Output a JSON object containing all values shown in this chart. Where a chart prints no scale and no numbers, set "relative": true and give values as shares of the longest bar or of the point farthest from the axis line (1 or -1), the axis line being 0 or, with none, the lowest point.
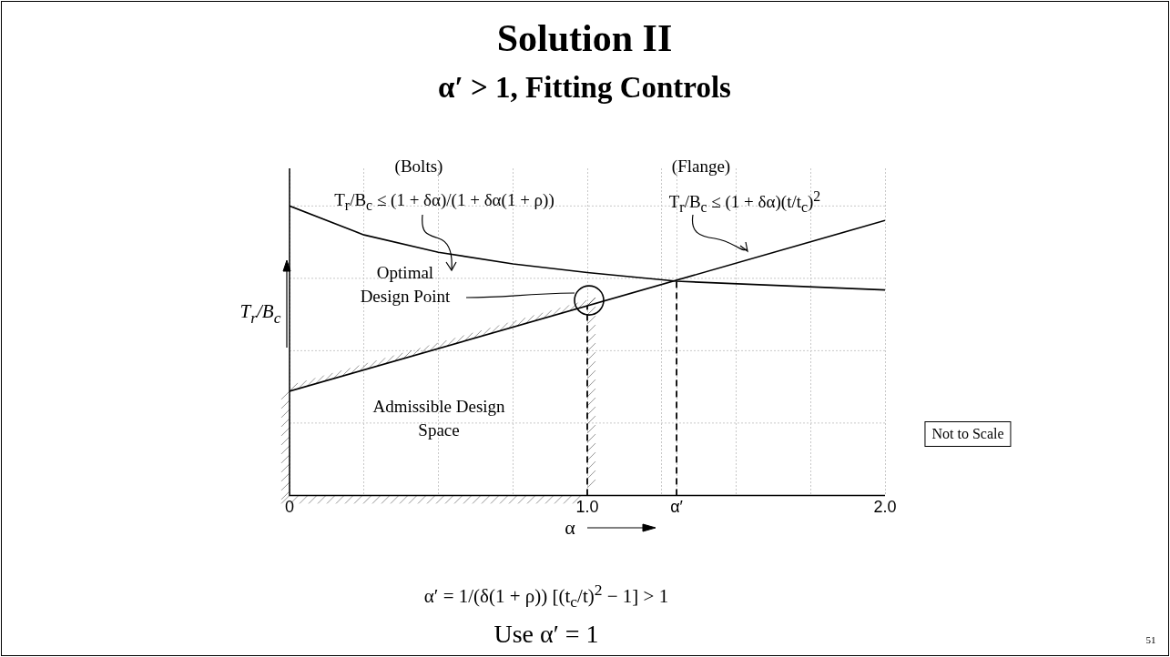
{
  "chart_data": {
    "type": "line",
    "title": "Solution II",
    "subtitle": "α′ > 1, Fitting Controls",
    "xlabel": "α",
    "ylabel": "T$_{r}$/B$_{c}$",
    "relative": true,
    "xlim": [
      0,
      2
    ],
    "xticks": [
      {
        "value": 0,
        "label": "0"
      },
      {
        "value": 0.25,
        "label": null
      },
      {
        "value": 0.5,
        "label": null
      },
      {
        "value": 0.75,
        "label": null
      },
      {
        "value": 1,
        "label": "1.0"
      },
      {
        "value": 1.25,
        "label": null
      },
      {
        "value": 1.3,
        "label": "α′"
      },
      {
        "value": 1.5,
        "label": null
      },
      {
        "value": 1.75,
        "label": null
      },
      {
        "value": 2,
        "label": "2.0"
      }
    ],
    "grid": true,
    "marker": "none",
    "line_style": "solid",
    "series": [
      {
        "color": "#000000",
        "x": [
          0,
          0.25,
          0.5,
          0.75,
          1,
          1.3,
          2
        ],
        "values": [
          1,
          0.9,
          0.84,
          0.8,
          0.77,
          0.74,
          0.71
        ]
      },
      {
        "color": "#000000",
        "x": [
          0,
          2
        ],
        "values": [
          0.36,
          0.95
        ]
      }
    ],
    "ref_lines": [
      {
        "axis": "x",
        "value": 1,
        "line_style": "dashed",
        "color": "#000000"
      },
      {
        "axis": "x",
        "value": 1.3,
        "line_style": "dashed",
        "color": "#000000"
      }
    ],
    "annotations": [
      "(Bolts)",
      "T$_{r}$/B$_{c}$ ≤ (1 + δα)/(1 + δα(1 + ρ))",
      "(Flange)",
      "T$_{r}$/B$_{c}$ ≤ (1 + δα)(t/t$_{c}$)$^{2}$",
      "Optimal Design Point",
      "Admissible Design Space",
      "Not to Scale",
      "α′ = 1/(δ(1 + ρ)) [(t$_{c}$/t)$^{2}$ − 1] > 1",
      "Use α′ = 1",
      "51"
    ]
  }
}
